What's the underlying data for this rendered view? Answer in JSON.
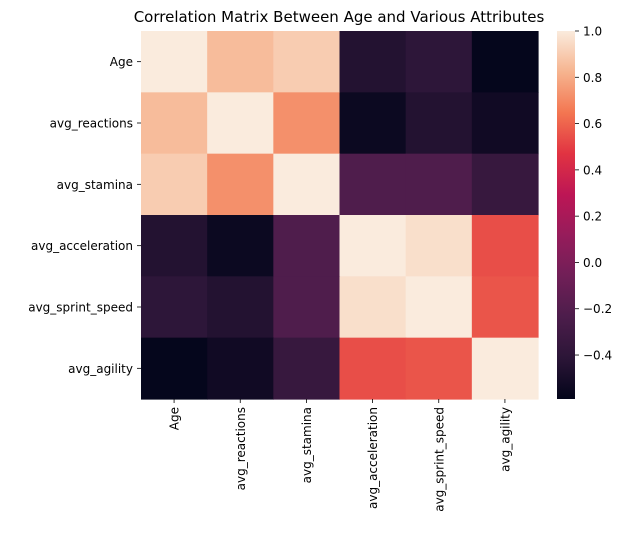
{
  "chart_data": {
    "type": "heatmap",
    "title": "Correlation Matrix Between Age and Various Attributes",
    "xlabel": "",
    "ylabel": "",
    "rows": [
      "Age",
      "avg_reactions",
      "avg_stamina",
      "avg_acceleration",
      "avg_sprint_speed",
      "avg_agility"
    ],
    "columns": [
      "Age",
      "avg_reactions",
      "avg_stamina",
      "avg_acceleration",
      "avg_sprint_speed",
      "avg_agility"
    ],
    "values": [
      [
        1.0,
        0.85,
        0.9,
        -0.45,
        -0.4,
        -0.58
      ],
      [
        0.85,
        1.0,
        0.72,
        -0.55,
        -0.45,
        -0.53
      ],
      [
        0.9,
        0.72,
        1.0,
        -0.22,
        -0.22,
        -0.35
      ],
      [
        -0.45,
        -0.55,
        -0.22,
        1.0,
        0.96,
        0.54
      ],
      [
        -0.4,
        -0.45,
        -0.22,
        0.96,
        1.0,
        0.56
      ],
      [
        -0.58,
        -0.53,
        -0.35,
        0.54,
        0.56,
        1.0
      ]
    ],
    "colorbar": {
      "min": -0.59,
      "max": 1.0,
      "ticks": [
        "1.0",
        "0.8",
        "0.6",
        "0.4",
        "0.2",
        "0.0",
        "−0.2",
        "−0.4"
      ],
      "colormap": "rocket",
      "colormap_stops": [
        "#03051a",
        "#2b1537",
        "#4c1d4b",
        "#701f57",
        "#961c5b",
        "#bd1655",
        "#e13342",
        "#f37651",
        "#f6b48f",
        "#faebdd"
      ]
    }
  }
}
